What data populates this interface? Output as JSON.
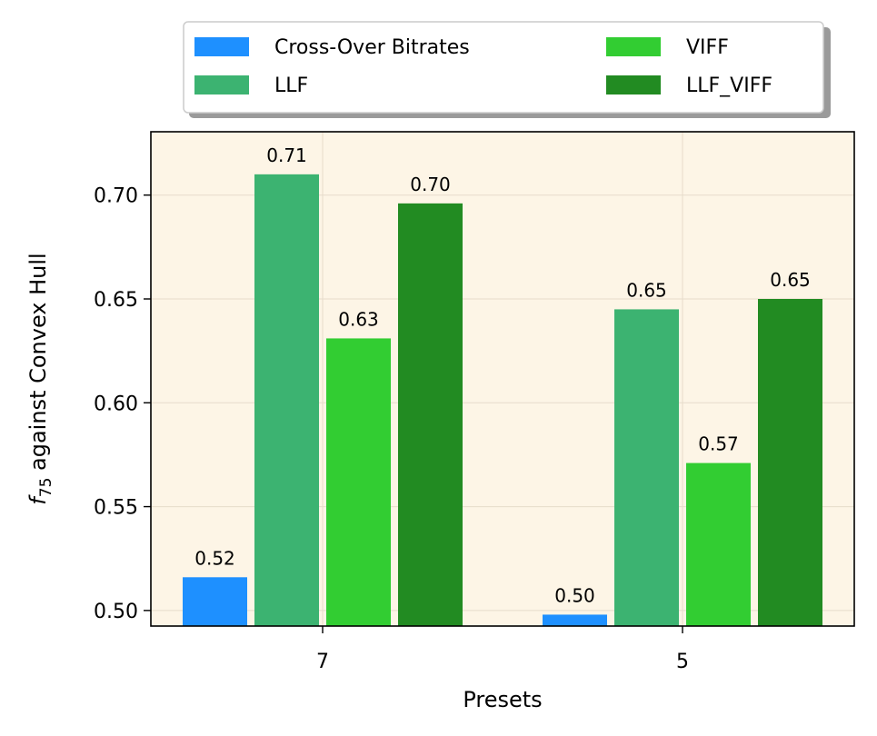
{
  "chart_data": {
    "type": "bar",
    "categories": [
      "7",
      "5"
    ],
    "series": [
      {
        "name": "Cross-Over Bitrates",
        "color": "#1e90ff",
        "values": [
          0.516,
          0.498
        ],
        "labels": [
          "0.52",
          "0.50"
        ]
      },
      {
        "name": "LLF",
        "color": "#3cb371",
        "values": [
          0.71,
          0.645
        ],
        "labels": [
          "0.71",
          "0.65"
        ]
      },
      {
        "name": "VIFF",
        "color": "#32cd32",
        "values": [
          0.631,
          0.571
        ],
        "labels": [
          "0.63",
          "0.57"
        ]
      },
      {
        "name": "LLF_VIFF",
        "color": "#228b22",
        "values": [
          0.696,
          0.65
        ],
        "labels": [
          "0.70",
          "0.65"
        ]
      }
    ],
    "title": "",
    "xlabel": "Presets",
    "ylabel_main": "f",
    "ylabel_sub": "75",
    "ylabel_rest": " against Convex Hull",
    "ylim": [
      0.4925,
      0.7305
    ],
    "yticks": [
      0.5,
      0.55,
      0.6,
      0.65,
      0.7
    ],
    "ytick_labels": [
      "0.50",
      "0.55",
      "0.60",
      "0.65",
      "0.70"
    ],
    "grid": true,
    "legend_position": "top-center",
    "background_color": "#fdf5e6"
  }
}
